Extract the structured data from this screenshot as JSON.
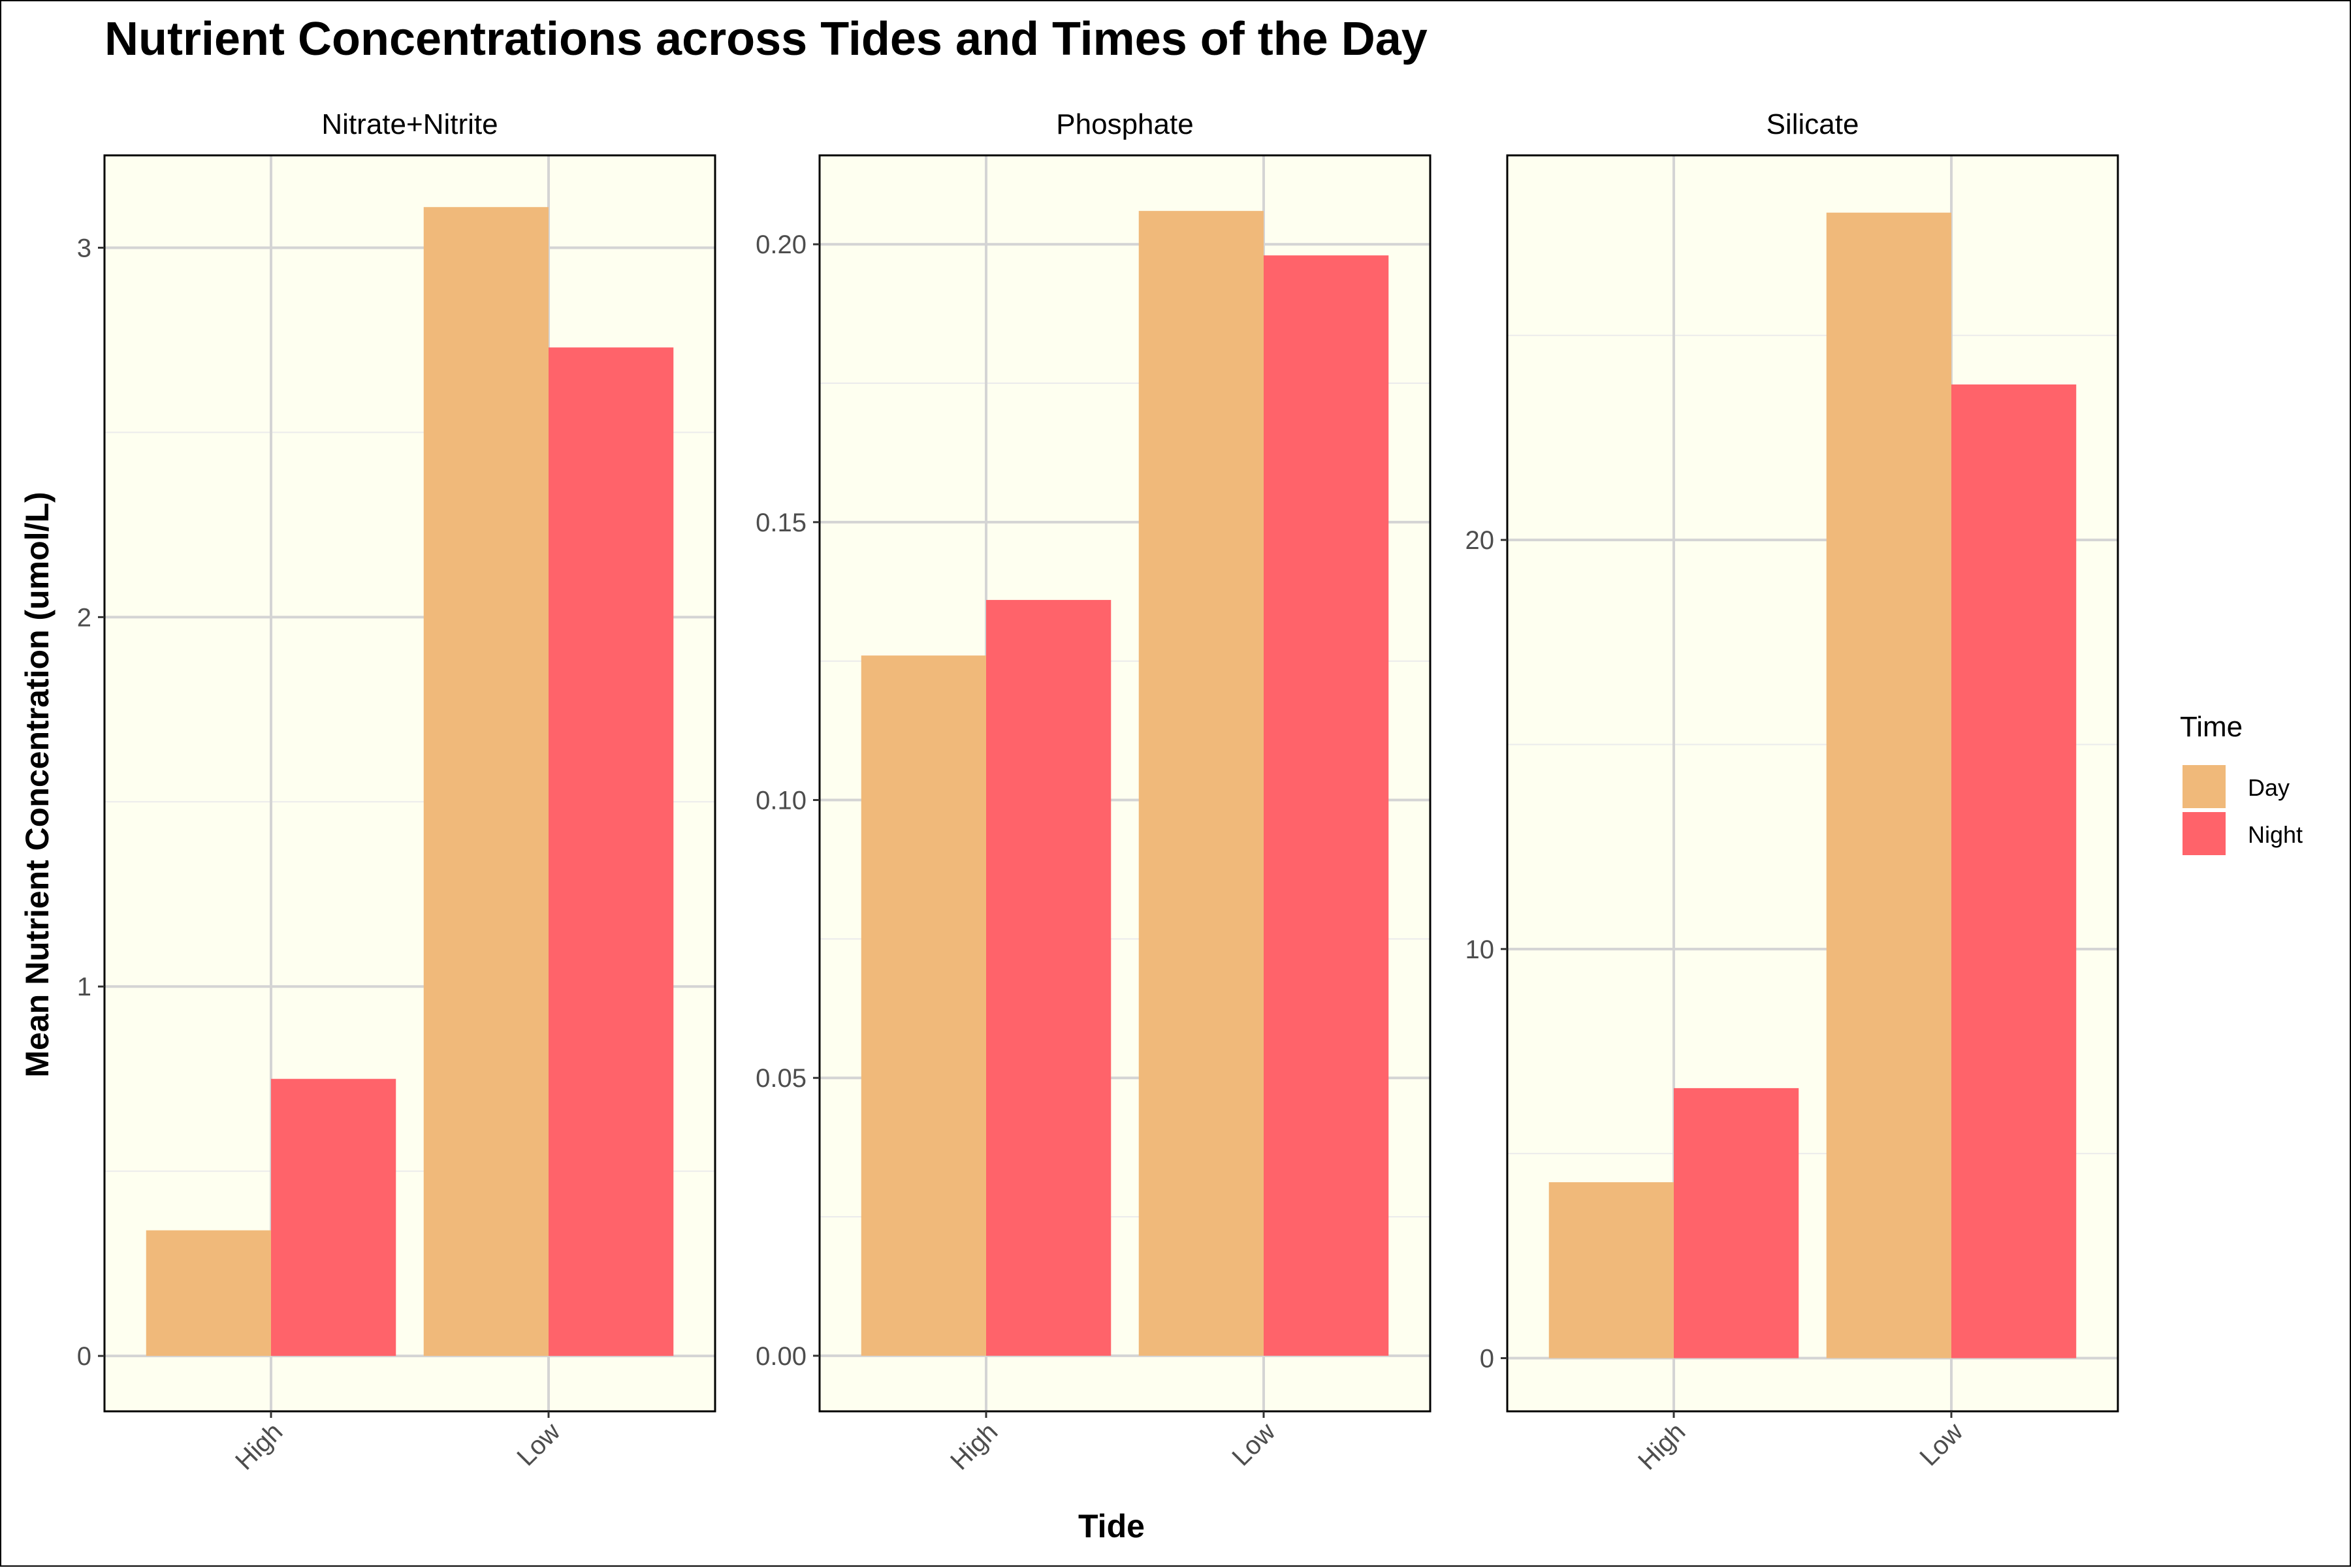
{
  "chart_data": {
    "type": "bar",
    "title": "Nutrient Concentrations across Tides and Times of the Day",
    "xlabel": "Tide",
    "ylabel": "Mean Nutrient Concentration (umol/L)",
    "categories": [
      "High",
      "Low"
    ],
    "legend": {
      "title": "Time",
      "placement": "right",
      "entries": [
        {
          "name": "Day",
          "color": "#F0B97A"
        },
        {
          "name": "Night",
          "color": "#FF636A"
        }
      ]
    },
    "grid": true,
    "panel_background": "#FEFFF0",
    "panels": [
      {
        "name": "Nitrate+Nitrite",
        "ylim": [
          -0.15,
          3.25
        ],
        "yticks": [
          0,
          1,
          2,
          3
        ],
        "ytick_labels": [
          "0",
          "1",
          "2",
          "3"
        ],
        "series": [
          {
            "name": "Day",
            "values": [
              0.34,
              3.11
            ]
          },
          {
            "name": "Night",
            "values": [
              0.75,
              2.73
            ]
          }
        ]
      },
      {
        "name": "Phosphate",
        "ylim": [
          -0.01,
          0.216
        ],
        "yticks": [
          0,
          0.05,
          0.1,
          0.15,
          0.2
        ],
        "ytick_labels": [
          "0.00",
          "0.05",
          "0.10",
          "0.15",
          "0.20"
        ],
        "series": [
          {
            "name": "Day",
            "values": [
              0.126,
              0.206
            ]
          },
          {
            "name": "Night",
            "values": [
              0.136,
              0.198
            ]
          }
        ]
      },
      {
        "name": "Silicate",
        "ylim": [
          -1.3,
          29.4
        ],
        "yticks": [
          0,
          10,
          20
        ],
        "ytick_labels": [
          "0",
          "10",
          "20"
        ],
        "series": [
          {
            "name": "Day",
            "values": [
              4.3,
              28.0
            ]
          },
          {
            "name": "Night",
            "values": [
              6.6,
              23.8
            ]
          }
        ]
      }
    ]
  }
}
